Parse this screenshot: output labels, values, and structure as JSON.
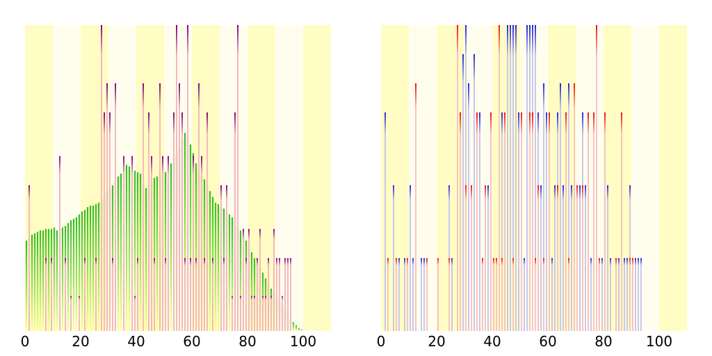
{
  "figure": {
    "background": "#ffffff",
    "band_colors": [
      "#fffdc4",
      "#fffeee"
    ]
  },
  "chart_data": [
    {
      "type": "bar",
      "title": "",
      "xlabel": "",
      "ylabel": "",
      "xlim": [
        0,
        110
      ],
      "ylim": [
        0,
        10.5
      ],
      "grid": false,
      "legend": null,
      "x_ticks": [
        0,
        20,
        40,
        60,
        80,
        100
      ],
      "x_tick_labels": [
        "0",
        "20",
        "40",
        "60",
        "80",
        "100"
      ],
      "bands": {
        "width": 10,
        "colors": [
          "#fffdc4",
          "#fffeee"
        ]
      },
      "series": [
        {
          "style": "gradient-column",
          "color_top": "#33bb22",
          "color_bottom": "#ffff99",
          "x": [
            0,
            1,
            2,
            3,
            4,
            5,
            6,
            7,
            8,
            9,
            10,
            11,
            12,
            13,
            14,
            15,
            16,
            17,
            18,
            19,
            20,
            21,
            22,
            23,
            24,
            25,
            26,
            27,
            28,
            29,
            30,
            31,
            32,
            33,
            34,
            35,
            36,
            37,
            38,
            39,
            40,
            41,
            42,
            43,
            44,
            45,
            46,
            47,
            48,
            49,
            50,
            51,
            52,
            53,
            54,
            55,
            56,
            57,
            58,
            59,
            60,
            61,
            62,
            63,
            64,
            65,
            66,
            67,
            68,
            69,
            70,
            71,
            72,
            73,
            74,
            75,
            76,
            77,
            78,
            79,
            80,
            81,
            82,
            83,
            84,
            85,
            86,
            87,
            88,
            89,
            90,
            91,
            92,
            93,
            94,
            95,
            96,
            97,
            98,
            99
          ],
          "values": [
            3.1,
            3.2,
            3.3,
            3.35,
            3.4,
            3.45,
            3.45,
            3.5,
            3.5,
            3.5,
            3.55,
            3.45,
            3.5,
            3.55,
            3.6,
            3.7,
            3.8,
            3.85,
            3.9,
            4.0,
            4.1,
            4.15,
            4.25,
            4.3,
            4.3,
            4.35,
            4.4,
            4.5,
            4.6,
            4.75,
            4.9,
            5.0,
            5.15,
            5.3,
            5.4,
            5.6,
            5.7,
            5.65,
            5.6,
            5.5,
            5.45,
            5.4,
            5.0,
            4.9,
            5.0,
            5.1,
            5.25,
            5.3,
            5.35,
            5.4,
            5.45,
            5.6,
            5.75,
            5.95,
            6.1,
            6.3,
            6.55,
            6.8,
            6.7,
            6.4,
            6.1,
            5.75,
            5.45,
            5.3,
            5.2,
            5.0,
            4.8,
            4.6,
            4.4,
            4.35,
            4.25,
            4.2,
            4.1,
            4.0,
            3.9,
            3.75,
            3.6,
            3.45,
            3.3,
            3.1,
            2.9,
            2.7,
            2.5,
            2.3,
            2.15,
            2.0,
            1.8,
            1.6,
            1.45,
            1.3,
            1.15,
            1.0,
            0.85,
            0.7,
            0.55,
            0.4,
            0.3,
            0.2,
            0.1,
            0.05
          ]
        },
        {
          "style": "spike",
          "color_top": "#800080",
          "color_bottom": "#f4b8c0",
          "x": [
            1,
            7,
            9,
            12,
            14,
            16,
            19,
            21,
            25,
            27,
            28,
            29,
            30,
            31,
            32,
            35,
            38,
            39,
            40,
            42,
            44,
            45,
            46,
            48,
            49,
            50,
            51,
            53,
            54,
            55,
            56,
            57,
            58,
            59,
            60,
            61,
            62,
            63,
            64,
            65,
            67,
            70,
            71,
            72,
            74,
            75,
            76,
            77,
            78,
            79,
            80,
            81,
            82,
            83,
            84,
            85,
            86,
            87,
            88,
            89,
            90,
            91,
            92,
            93,
            94,
            95
          ],
          "values": [
            5.0,
            2.5,
            2.5,
            6.0,
            2.5,
            1.2,
            1.2,
            2.5,
            2.5,
            10.5,
            7.5,
            8.5,
            7.5,
            2.5,
            8.5,
            6.0,
            6.0,
            1.2,
            2.5,
            8.5,
            7.5,
            6.0,
            2.5,
            8.5,
            6.0,
            2.5,
            6.0,
            7.5,
            10.5,
            8.5,
            7.5,
            2.5,
            10.5,
            2.5,
            6.0,
            2.5,
            8.5,
            6.0,
            2.5,
            7.5,
            2.5,
            5.0,
            2.5,
            5.0,
            1.2,
            7.5,
            10.5,
            1.2,
            3.5,
            2.5,
            3.5,
            1.2,
            1.2,
            2.5,
            3.5,
            1.2,
            1.2,
            2.5,
            1.2,
            3.5,
            2.5,
            2.5,
            1.2,
            2.5,
            2.5,
            2.5
          ]
        }
      ]
    },
    {
      "type": "bar",
      "title": "",
      "xlabel": "",
      "ylabel": "",
      "xlim": [
        0,
        110
      ],
      "ylim": [
        0,
        10.5
      ],
      "grid": false,
      "legend": null,
      "x_ticks": [
        0,
        20,
        40,
        60,
        80,
        100
      ],
      "x_tick_labels": [
        "0",
        "20",
        "40",
        "60",
        "80",
        "100"
      ],
      "bands": {
        "width": 10,
        "colors": [
          "#fffdc4",
          "#fffeee"
        ]
      },
      "series": [
        {
          "style": "spike",
          "color_top": "#2222dd",
          "color_bottom": "#c8c8f0",
          "x": [
            1,
            4,
            6,
            8,
            10,
            11,
            12,
            14,
            15,
            24,
            25,
            28,
            29,
            30,
            31,
            33,
            35,
            38,
            39,
            42,
            43,
            45,
            46,
            47,
            48,
            49,
            50,
            51,
            52,
            53,
            54,
            55,
            56,
            57,
            58,
            59,
            61,
            62,
            63,
            64,
            65,
            66,
            67,
            68,
            69,
            70,
            71,
            72,
            73,
            75,
            77,
            79,
            81,
            82,
            84,
            85,
            86,
            87,
            88,
            89,
            90,
            91,
            92,
            93
          ],
          "values": [
            7.5,
            5.0,
            2.5,
            2.5,
            5.0,
            2.5,
            2.5,
            2.5,
            2.5,
            5.0,
            2.5,
            7.5,
            9.5,
            10.5,
            8.5,
            9.5,
            7.5,
            5.0,
            7.5,
            8.5,
            7.5,
            10.5,
            10.5,
            10.5,
            10.5,
            7.5,
            5.0,
            2.5,
            10.5,
            10.5,
            10.5,
            10.5,
            7.5,
            5.0,
            8.5,
            7.5,
            2.5,
            5.0,
            7.5,
            8.5,
            5.0,
            7.5,
            8.5,
            5.0,
            2.5,
            5.0,
            5.0,
            7.5,
            5.0,
            2.5,
            8.5,
            2.5,
            5.0,
            2.5,
            2.5,
            2.5,
            5.0,
            2.5,
            2.5,
            5.0,
            2.5,
            2.5,
            2.5,
            2.5
          ]
        },
        {
          "style": "spike",
          "color_top": "#ee1111",
          "color_bottom": "#f8c4c4",
          "x": [
            2,
            5,
            9,
            12,
            16,
            20,
            24,
            27,
            28,
            30,
            32,
            34,
            36,
            37,
            39,
            40,
            41,
            42,
            43,
            44,
            47,
            50,
            53,
            54,
            55,
            56,
            58,
            60,
            63,
            66,
            67,
            69,
            70,
            72,
            74,
            76,
            77,
            78,
            80,
            84,
            86,
            89,
            90
          ],
          "values": [
            2.5,
            2.5,
            2.5,
            8.5,
            2.5,
            2.5,
            2.5,
            10.5,
            7.5,
            5.0,
            5.0,
            7.5,
            2.5,
            5.0,
            7.5,
            2.5,
            2.5,
            10.5,
            2.5,
            7.5,
            2.5,
            7.5,
            7.5,
            7.5,
            2.5,
            5.0,
            2.5,
            7.5,
            5.0,
            7.5,
            2.5,
            8.5,
            5.0,
            5.0,
            7.5,
            7.5,
            10.5,
            2.5,
            7.5,
            2.5,
            7.5,
            2.5,
            2.5
          ]
        }
      ]
    }
  ]
}
